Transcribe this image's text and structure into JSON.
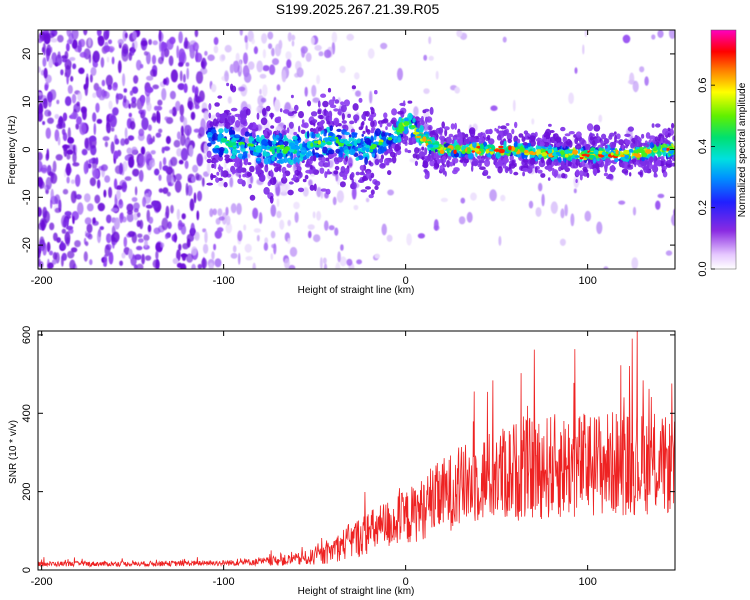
{
  "title": "S199.2025.267.21.39.R05",
  "colors": {
    "snr_line": "#ee2222",
    "purple": "#7a1ee6",
    "frame": "#000000"
  },
  "chart_data": [
    {
      "type": "heatmap",
      "title": "S199.2025.267.21.39.R05",
      "xlabel": "Height of straight line (km)",
      "ylabel": "Frequency (Hz)",
      "xlim": [
        -202,
        148
      ],
      "ylim": [
        -25,
        25
      ],
      "xticks": [
        -200,
        -100,
        0,
        100
      ],
      "xtick_labels": [
        "-200",
        "-100",
        "0",
        "100"
      ],
      "yticks": [
        -20,
        -10,
        0,
        10,
        20
      ],
      "ytick_labels": [
        "-20",
        "-10",
        "0",
        "10",
        "20"
      ],
      "colorbar": {
        "label": "Normalized spectral amplitude",
        "range": [
          0.0,
          0.78
        ],
        "ticks": [
          0.0,
          0.2,
          0.4,
          0.6
        ],
        "tick_labels": [
          "0.0",
          "0.2",
          "0.4",
          "0.6"
        ],
        "colormap": "rainbow (white-purple-blue-cyan-green-yellow-red-magenta)"
      },
      "ridge": {
        "description": "dominant frequency track",
        "x": [
          -105,
          -80,
          -60,
          -40,
          -20,
          -5,
          0,
          5,
          10,
          20,
          40,
          60,
          80,
          100,
          120,
          148
        ],
        "y": [
          2,
          0,
          0,
          2,
          0,
          3,
          6,
          4,
          2,
          0,
          0,
          0,
          -1,
          -1,
          -1,
          0
        ]
      }
    },
    {
      "type": "line",
      "xlabel": "Height of straight line (km)",
      "ylabel": "SNR (10 * v/v)",
      "xlim": [
        -202,
        148
      ],
      "ylim": [
        0,
        610
      ],
      "xticks": [
        -200,
        -100,
        0,
        100
      ],
      "xtick_labels": [
        "-200",
        "-100",
        "0",
        "100"
      ],
      "yticks": [
        0,
        200,
        400,
        600
      ],
      "ytick_labels": [
        "0",
        "200",
        "400",
        "600"
      ],
      "envelope": {
        "description": "approximate mean and spread of noisy SNR trace",
        "x": [
          -202,
          -150,
          -100,
          -80,
          -60,
          -45,
          -35,
          -30,
          -20,
          -10,
          0,
          10,
          20,
          30,
          40,
          50,
          60,
          80,
          100,
          120,
          140,
          148
        ],
        "mean": [
          15,
          15,
          17,
          20,
          25,
          35,
          60,
          70,
          90,
          110,
          125,
          150,
          180,
          200,
          220,
          230,
          240,
          250,
          255,
          260,
          255,
          250
        ],
        "spread": [
          8,
          8,
          9,
          12,
          20,
          30,
          50,
          60,
          70,
          80,
          90,
          100,
          120,
          130,
          140,
          150,
          160,
          170,
          170,
          170,
          160,
          150
        ]
      }
    }
  ]
}
